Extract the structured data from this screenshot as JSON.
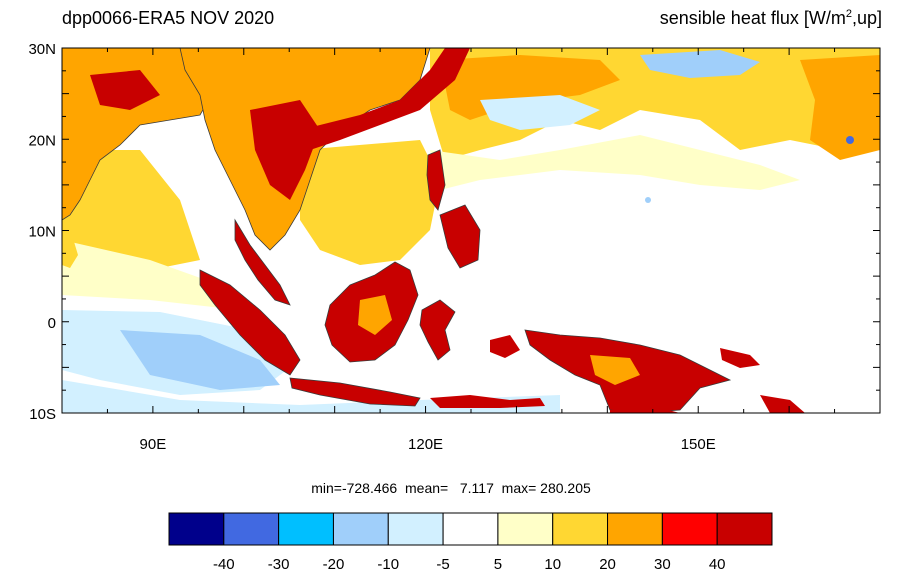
{
  "title": {
    "left": "dpp0066-ERA5  NOV 2020",
    "right_prefix": "sensible heat flux [W/m",
    "right_sup": "2",
    "right_suffix": ",up]"
  },
  "map": {
    "lon_range": [
      80,
      170
    ],
    "lat_range": [
      -10,
      30
    ],
    "lat_labels": [
      "30N",
      "20N",
      "10N",
      "0",
      "10S"
    ],
    "lon_labels": [
      "90E",
      "120E",
      "150E"
    ],
    "lon_label_values": [
      90,
      120,
      150
    ],
    "lat_label_values": [
      30,
      20,
      10,
      0,
      -10
    ]
  },
  "stats": {
    "min_label": "min=",
    "min": "-728.466",
    "mean_label": "mean=",
    "mean": "7.117",
    "max_label": "max=",
    "max": "280.205"
  },
  "colorbar": {
    "colors": [
      "#00008b",
      "#4169e1",
      "#00bfff",
      "#a0cffa",
      "#d2f0ff",
      "#ffffff",
      "#ffffc8",
      "#ffd732",
      "#ffa500",
      "#ff0000",
      "#c80000"
    ],
    "labels": [
      "-40",
      "-30",
      "-20",
      "-10",
      "-5",
      "5",
      "10",
      "20",
      "30",
      "40"
    ]
  },
  "palette": {
    "land_hot": "#c80000",
    "land_warm": "#ffa500",
    "ocean_warm": "#ffd732",
    "ocean_light": "#ffffc8",
    "ocean_cool": "#a0cffa",
    "ocean_neutral": "#ffffff",
    "ocean_pale_blue": "#d2f0ff",
    "coast": "#3a3a3a"
  }
}
